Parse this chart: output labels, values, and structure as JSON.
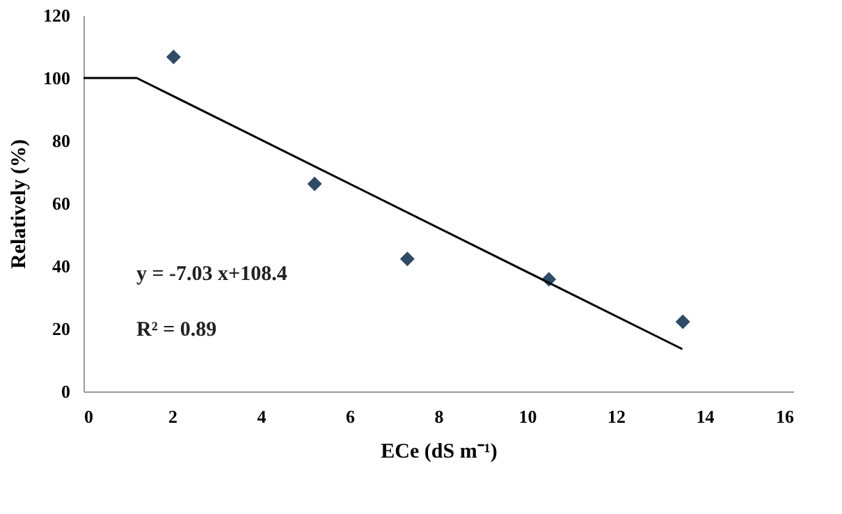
{
  "chart_data": {
    "type": "scatter",
    "xlabel": "ECe (dS m⁻¹)",
    "ylabel": "Relatively (%)",
    "xlim": [
      0,
      16
    ],
    "xticks": [
      0,
      2,
      4,
      6,
      8,
      10,
      12,
      14,
      16
    ],
    "ylim": [
      0,
      120
    ],
    "yticks": [
      0,
      20,
      40,
      60,
      80,
      100,
      120
    ],
    "grid": false,
    "series": [
      {
        "color": "#2f4b68",
        "marker": "diamond",
        "x": [
          2.03,
          5.21,
          7.3,
          10.49,
          13.51
        ],
        "values": [
          106.7,
          66.2,
          42.3,
          35.8,
          22.2
        ]
      },
      {
        "type": "line",
        "color": "#000000",
        "marker": "none",
        "line_style": "solid",
        "x": [
          0,
          1.2,
          13.5
        ],
        "values": [
          100,
          100,
          13.5
        ]
      }
    ],
    "annotations": [
      "y = -7.03 x+108.4",
      "R² = 0.89"
    ]
  }
}
